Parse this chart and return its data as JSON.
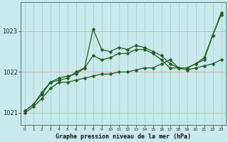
{
  "title": "Graphe pression niveau de la mer (hPa)",
  "ylabel_values": [
    1021,
    1022,
    1023
  ],
  "xlim": [
    -0.5,
    23.5
  ],
  "ylim": [
    1020.7,
    1023.7
  ],
  "plot_bg_color": "#c8eaea",
  "fig_bg_color": "#c8eaea",
  "hgrid_color": "#e8a0a0",
  "vgrid_color": "#a8d0d0",
  "line_color": "#1e5e1e",
  "marker": "D",
  "markersize": 2.5,
  "linewidth": 0.9,
  "series": {
    "s1": [
      1021.0,
      1021.15,
      1021.35,
      1021.6,
      1021.75,
      1021.75,
      1021.8,
      1021.85,
      1021.9,
      1021.95,
      1021.95,
      1022.0,
      1022.0,
      1022.05,
      1022.1,
      1022.1,
      1022.2,
      1022.3,
      1022.1,
      1022.05,
      1022.1,
      1022.15,
      1022.2,
      1022.3
    ],
    "s2": [
      1021.05,
      1021.2,
      1021.5,
      1021.75,
      1021.8,
      1021.85,
      1022.0,
      1022.1,
      1023.05,
      1022.55,
      1022.5,
      1022.6,
      1022.55,
      1022.65,
      1022.6,
      1022.5,
      1022.4,
      1022.2,
      1022.1,
      1022.1,
      1022.2,
      1022.35,
      1022.9,
      1023.4
    ],
    "s3": [
      1021.05,
      1021.2,
      1021.45,
      1021.75,
      1021.85,
      1021.9,
      1021.95,
      1022.1,
      1022.4,
      1022.3,
      1022.35,
      1022.45,
      1022.45,
      1022.55,
      1022.55,
      1022.45,
      1022.3,
      1022.1,
      1022.1,
      1022.1,
      1022.2,
      1022.3,
      1022.9,
      1023.45
    ]
  }
}
